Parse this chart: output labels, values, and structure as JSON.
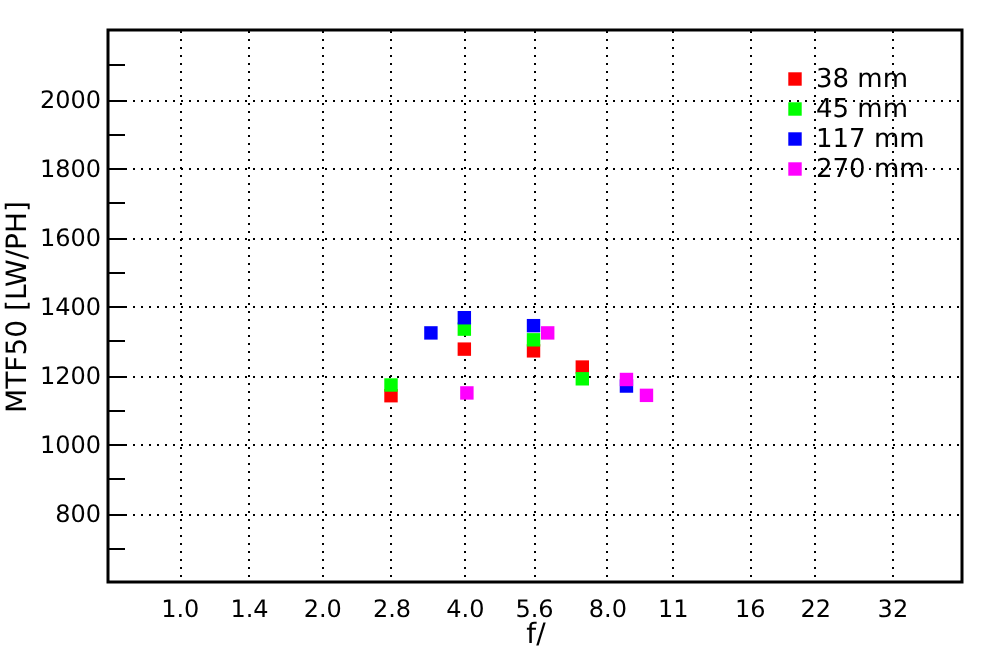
{
  "chart_data": {
    "type": "scatter",
    "xlabel": "f/",
    "ylabel": "MTF50 [LW/PH]",
    "marker": "square",
    "grid": true,
    "legend": "top right",
    "log": "x",
    "xlim": [
      0.707,
      45
    ],
    "ylim": [
      600,
      2200
    ],
    "xticks": [
      {
        "value": 1,
        "label": "1.0"
      },
      1.4,
      {
        "value": 2,
        "label": "2.0"
      },
      2.8,
      {
        "value": 4,
        "label": "4.0"
      },
      5.6,
      {
        "value": 8,
        "label": "8.0"
      },
      11,
      16,
      22,
      32
    ],
    "yticks": [
      {
        "value": 700,
        "label": null
      },
      800,
      {
        "value": 900,
        "label": null
      },
      1000,
      {
        "value": 1100,
        "label": null
      },
      1200,
      {
        "value": 1300,
        "label": null
      },
      1400,
      {
        "value": 1500,
        "label": null
      },
      1600,
      {
        "value": 1700,
        "label": null
      },
      1800,
      {
        "value": 1900,
        "label": null
      },
      2000,
      {
        "value": 2100,
        "label": null
      }
    ],
    "series": [
      {
        "name": "38 mm",
        "color": "#ff0000",
        "x": [
          2.8,
          4.0,
          5.6,
          7.1
        ],
        "values": [
          1140,
          1275,
          1270,
          1223
        ]
      },
      {
        "name": "45 mm",
        "color": "#00ff00",
        "x": [
          2.8,
          4.0,
          5.6,
          7.1
        ],
        "values": [
          1171,
          1333,
          1302,
          1189
        ]
      },
      {
        "name": "117 mm",
        "color": "#0000ff",
        "x": [
          3.4,
          4.0,
          5.6,
          8.8
        ],
        "values": [
          1322,
          1366,
          1343,
          1168
        ]
      },
      {
        "name": "270 mm",
        "color": "#ff00ff",
        "x": [
          4.05,
          6.0,
          8.8,
          9.7
        ],
        "values": [
          1148,
          1322,
          1187,
          1141
        ]
      }
    ]
  }
}
